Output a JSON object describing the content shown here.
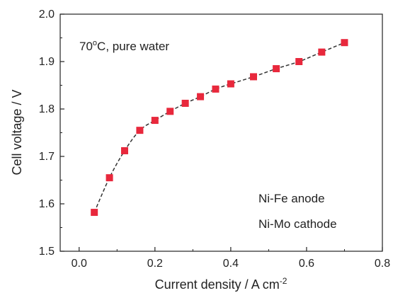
{
  "chart_data": {
    "type": "scatter",
    "xlabel": "Current density / A cm",
    "xlabel_sup": "-2",
    "ylabel": "Cell voltage / V",
    "xlim": [
      -0.05,
      0.8
    ],
    "ylim": [
      1.5,
      2.0
    ],
    "x_ticks": [
      0.0,
      0.2,
      0.4,
      0.6,
      0.8
    ],
    "x_tick_labels": [
      "0.0",
      "0.2",
      "0.4",
      "0.6",
      "0.8"
    ],
    "y_ticks": [
      1.5,
      1.6,
      1.7,
      1.8,
      1.9,
      2.0
    ],
    "y_tick_labels": [
      "1.5",
      "1.6",
      "1.7",
      "1.8",
      "1.9",
      "2.0"
    ],
    "grid": false,
    "series": [
      {
        "marker": "square",
        "color": "#e8283c",
        "fit_line": "dashed",
        "fit_color": "#333333",
        "x": [
          0.04,
          0.08,
          0.12,
          0.16,
          0.2,
          0.24,
          0.28,
          0.32,
          0.36,
          0.4,
          0.46,
          0.52,
          0.58,
          0.64,
          0.7
        ],
        "y": [
          1.582,
          1.655,
          1.712,
          1.755,
          1.776,
          1.795,
          1.812,
          1.826,
          1.842,
          1.853,
          1.868,
          1.885,
          1.9,
          1.92,
          1.94
        ]
      }
    ],
    "annotations": {
      "condition_main": "70",
      "condition_sup": "o",
      "condition_rest": "C, pure water",
      "anode": "Ni-Fe anode",
      "cathode": "Ni-Mo cathode"
    }
  }
}
